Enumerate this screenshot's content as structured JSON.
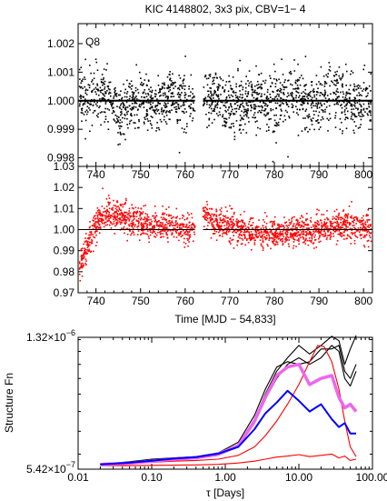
{
  "figure": {
    "title": "KIC 4148802,  3x3 pix, CBV=1− 4"
  },
  "colors": {
    "black": "#000000",
    "red": "#ff0000",
    "blue": "#0000ff",
    "magenta": "#ee66ee"
  },
  "chart_data": [
    {
      "type": "scatter",
      "panel": "top",
      "annotation": "Q8",
      "xlim": [
        736,
        802
      ],
      "ylim": [
        0.9977,
        1.0027
      ],
      "x_ticks": [
        740,
        750,
        760,
        770,
        780,
        790,
        800
      ],
      "x_tick_labels": [
        "740",
        "750",
        "760",
        "770",
        "780",
        "790",
        "800"
      ],
      "x_tick_labels_position": "top",
      "y_ticks": [
        0.998,
        0.999,
        1.0,
        1.001,
        1.002
      ],
      "y_tick_labels": [
        "0.998",
        "0.999",
        "1.000",
        "1.001",
        "1.002"
      ],
      "reference_line": 1.0,
      "gap": [
        762.2,
        764.0
      ],
      "series": [
        {
          "color": "#000000",
          "x": [
            737.0,
            741.0,
            745.0,
            749.0,
            753.0,
            757.0,
            761.0,
            765.0,
            769.0,
            773.0,
            777.0,
            781.0,
            785.0,
            789.0,
            793.0,
            797.0,
            801.0
          ],
          "y": [
            1.0,
            1.0003,
            0.9997,
            1.0001,
            0.9998,
            1.0002,
            1.0,
            1.0002,
            0.9998,
            1.0,
            1.0001,
            0.9999,
            1.0002,
            0.9998,
            1.0003,
            1.0,
            0.9999
          ],
          "scatter_sd": 0.0005
        }
      ]
    },
    {
      "type": "scatter",
      "panel": "middle",
      "xlabel": "Time [MJD − 54,833]",
      "xlim": [
        736,
        802
      ],
      "ylim": [
        0.97,
        1.03
      ],
      "x_ticks": [
        740,
        750,
        760,
        770,
        780,
        790,
        800
      ],
      "x_tick_labels": [
        "740",
        "750",
        "760",
        "770",
        "780",
        "790",
        "800"
      ],
      "y_ticks": [
        0.97,
        0.98,
        0.99,
        1.0,
        1.01,
        1.02,
        1.03
      ],
      "y_tick_labels": [
        "0.97",
        "0.98",
        "0.99",
        "1.00",
        "1.01",
        "1.02",
        "1.03"
      ],
      "reference_line": 1.0,
      "gap": [
        762.2,
        764.0
      ],
      "series": [
        {
          "color": "#ff0000",
          "x": [
            736.0,
            737.0,
            738.0,
            739.5,
            741.0,
            743.0,
            746.0,
            750.0,
            754.0,
            758.0,
            762.0,
            764.0,
            766.0,
            769.0,
            773.0,
            777.0,
            781.0,
            785.0,
            789.0,
            793.0,
            797.0,
            802.0
          ],
          "y": [
            0.978,
            0.985,
            0.992,
            1.0,
            1.005,
            1.008,
            1.006,
            1.003,
            1.002,
            1.001,
            1.0,
            1.008,
            1.005,
            1.002,
            0.999,
            0.998,
            0.998,
            0.999,
            1.0,
            1.002,
            1.002,
            1.0
          ],
          "scatter_sd": 0.0035
        }
      ]
    },
    {
      "type": "line",
      "panel": "bottom",
      "ylabel": "Structure Fn",
      "xlabel": "τ [Days]",
      "x_scale": "log",
      "y_scale": "log",
      "xlim": [
        0.01,
        100
      ],
      "ylim": [
        5.42e-07,
        1.32e-06
      ],
      "x_ticks": [
        0.01,
        0.1,
        1,
        10,
        100
      ],
      "x_tick_labels": [
        "0.01",
        "0.10",
        "1.00",
        "10.00",
        "100.00"
      ],
      "y_tick_labels": [
        "5.42×10",
        "1.32×10"
      ],
      "y_tick_exponents": [
        "−7",
        "−6"
      ],
      "series": [
        {
          "color": "#000000",
          "x": [
            0.02,
            0.05,
            0.1,
            0.2,
            0.4,
            0.8,
            1.5,
            2.5,
            3.5,
            5,
            7,
            10,
            14,
            20,
            28,
            35,
            42,
            50,
            60
          ],
          "y": [
            5.6e-07,
            5.65e-07,
            5.75e-07,
            5.8e-07,
            5.85e-07,
            6e-07,
            6.4e-07,
            7.6e-07,
            9e-07,
            1.05e-06,
            1.15e-06,
            1.25e-06,
            1.18e-06,
            1.25e-06,
            1.33e-06,
            1.29e-06,
            1.1e-06,
            1.22e-06,
            1.36e-06
          ]
        },
        {
          "color": "#000000",
          "x": [
            0.02,
            0.05,
            0.1,
            0.2,
            0.4,
            0.8,
            1.5,
            2.5,
            3.5,
            5,
            7,
            10,
            14,
            20,
            28,
            35,
            42,
            50,
            60
          ],
          "y": [
            5.6e-07,
            5.7e-07,
            5.8e-07,
            5.85e-07,
            5.9e-07,
            6.05e-07,
            6.5e-07,
            7.8e-07,
            9.3e-07,
            1.08e-06,
            1.12e-06,
            1.1e-06,
            1.12e-06,
            1.22e-06,
            1.22e-06,
            1.25e-06,
            1.05e-06,
            1e-06,
            1.1e-06
          ]
        },
        {
          "color": "#000000",
          "x": [
            0.02,
            0.05,
            0.1,
            0.2,
            0.4,
            0.8,
            1.5,
            2.5,
            3.5,
            5,
            7,
            10,
            14,
            20,
            28,
            35,
            42,
            50,
            60
          ],
          "y": [
            5.6e-07,
            5.62e-07,
            5.7e-07,
            5.78e-07,
            5.82e-07,
            5.95e-07,
            6.3e-07,
            7.4e-07,
            8.7e-07,
            1e-06,
            1.1e-06,
            1.15e-06,
            1.1e-06,
            1.15e-06,
            1.25e-06,
            1.2e-06,
            1e-06,
            9.5e-07,
            1.05e-06
          ]
        },
        {
          "color": "#ff0000",
          "x": [
            0.02,
            0.05,
            0.1,
            0.2,
            0.4,
            0.8,
            1.5,
            2.5,
            3.5,
            5,
            7,
            10,
            14,
            18,
            22,
            28,
            35,
            42,
            50,
            60
          ],
          "y": [
            5.6e-07,
            5.62e-07,
            5.68e-07,
            5.72e-07,
            5.75e-07,
            5.8e-07,
            5.95e-07,
            6.3e-07,
            6.8e-07,
            7.5e-07,
            8.4e-07,
            9.6e-07,
            1.12e-06,
            1.25e-06,
            1.24e-06,
            1.12e-06,
            9.3e-07,
            7.5e-07,
            6.3e-07,
            5.9e-07
          ]
        },
        {
          "color": "#ff0000",
          "x": [
            0.02,
            0.05,
            0.1,
            0.2,
            0.4,
            0.8,
            1.5,
            2.5,
            3.5,
            5,
            7,
            10,
            14,
            20,
            28,
            35,
            42,
            50,
            60
          ],
          "y": [
            5.55e-07,
            5.55e-07,
            5.56e-07,
            5.57e-07,
            5.58e-07,
            5.6e-07,
            5.65e-07,
            5.72e-07,
            5.8e-07,
            5.88e-07,
            5.92e-07,
            5.98e-07,
            5.9e-07,
            5.95e-07,
            6e-07,
            5.85e-07,
            5.92e-07,
            5.75e-07,
            5.8e-07
          ]
        },
        {
          "color": "#ee66ee",
          "x": [
            0.02,
            0.05,
            0.1,
            0.2,
            0.4,
            0.8,
            1.5,
            2.5,
            3.5,
            5,
            7,
            10,
            14,
            20,
            28,
            35,
            42,
            50,
            60
          ],
          "y": [
            5.6e-07,
            5.64e-07,
            5.72e-07,
            5.8e-07,
            5.85e-07,
            6e-07,
            6.35e-07,
            7.5e-07,
            8.8e-07,
            1.02e-06,
            1.08e-06,
            1.1e-06,
            9.6e-07,
            1e-06,
            1.02e-06,
            8.8e-07,
            8.2e-07,
            8.4e-07,
            8e-07
          ]
        },
        {
          "color": "#0000ff",
          "x": [
            0.02,
            0.05,
            0.1,
            0.2,
            0.4,
            0.8,
            1.5,
            2.5,
            3.5,
            5,
            7,
            10,
            14,
            20,
            28,
            35,
            42,
            50,
            60
          ],
          "y": [
            5.6e-07,
            5.66e-07,
            5.74e-07,
            5.82e-07,
            5.88e-07,
            6.02e-07,
            6.3e-07,
            7.1e-07,
            7.9e-07,
            8.5e-07,
            9.2e-07,
            8.6e-07,
            8e-07,
            8.4e-07,
            7.6e-07,
            7.2e-07,
            7.4e-07,
            6.9e-07,
            6.9e-07
          ]
        }
      ]
    }
  ]
}
